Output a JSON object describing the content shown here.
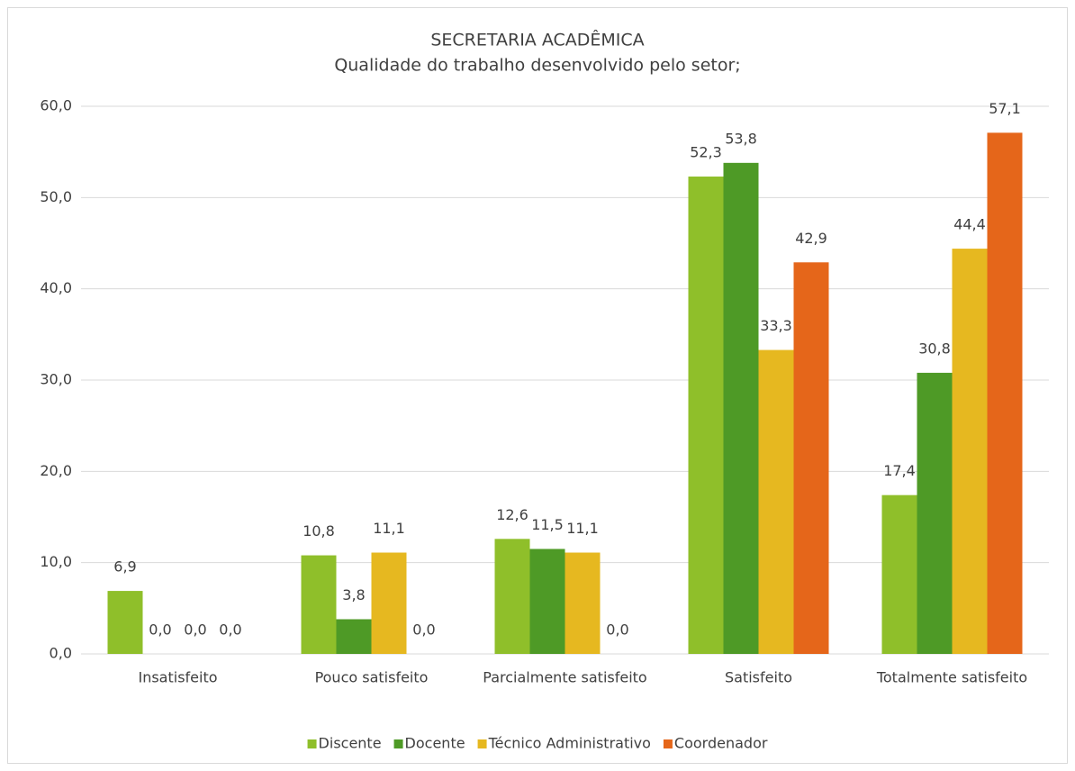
{
  "chart_data": {
    "type": "bar",
    "title": "SECRETARIA ACADÊMICA",
    "subtitle": "Qualidade do trabalho desenvolvido pelo setor;",
    "categories": [
      "Insatisfeito",
      "Pouco satisfeito",
      "Parcialmente satisfeito",
      "Satisfeito",
      "Totalmente satisfeito"
    ],
    "series": [
      {
        "name": "Discente",
        "color": "#8fbf2a",
        "values": [
          6.9,
          10.8,
          12.6,
          52.3,
          17.4
        ],
        "value_labels": [
          "6,9",
          "10,8",
          "12,6",
          "52,3",
          "17,4"
        ]
      },
      {
        "name": "Docente",
        "color": "#4e9a26",
        "values": [
          0,
          3.8,
          11.5,
          53.8,
          30.8
        ],
        "value_labels": [
          "0,0",
          "3,8",
          "11,5",
          "53,8",
          "30,8"
        ]
      },
      {
        "name": "Técnico Administrativo",
        "color": "#e6b820",
        "values": [
          0,
          11.1,
          11.1,
          33.3,
          44.4
        ],
        "value_labels": [
          "0,0",
          "11,1",
          "11,1",
          "33,3",
          "44,4"
        ]
      },
      {
        "name": "Coordenador",
        "color": "#e5661a",
        "values": [
          0,
          0,
          0,
          42.9,
          57.1
        ],
        "value_labels": [
          "0,0",
          "0,0",
          "0,0",
          "42,9",
          "57,1"
        ]
      }
    ],
    "ylim": [
      0,
      60
    ],
    "yticks": [
      {
        "value": 0,
        "label": "0,0"
      },
      {
        "value": 10,
        "label": "10,0"
      },
      {
        "value": 20,
        "label": "20,0"
      },
      {
        "value": 30,
        "label": "30,0"
      },
      {
        "value": 40,
        "label": "40,0"
      },
      {
        "value": 50,
        "label": "50,0"
      },
      {
        "value": 60,
        "label": "60,0"
      }
    ],
    "grid": true,
    "legend": "bottom"
  }
}
